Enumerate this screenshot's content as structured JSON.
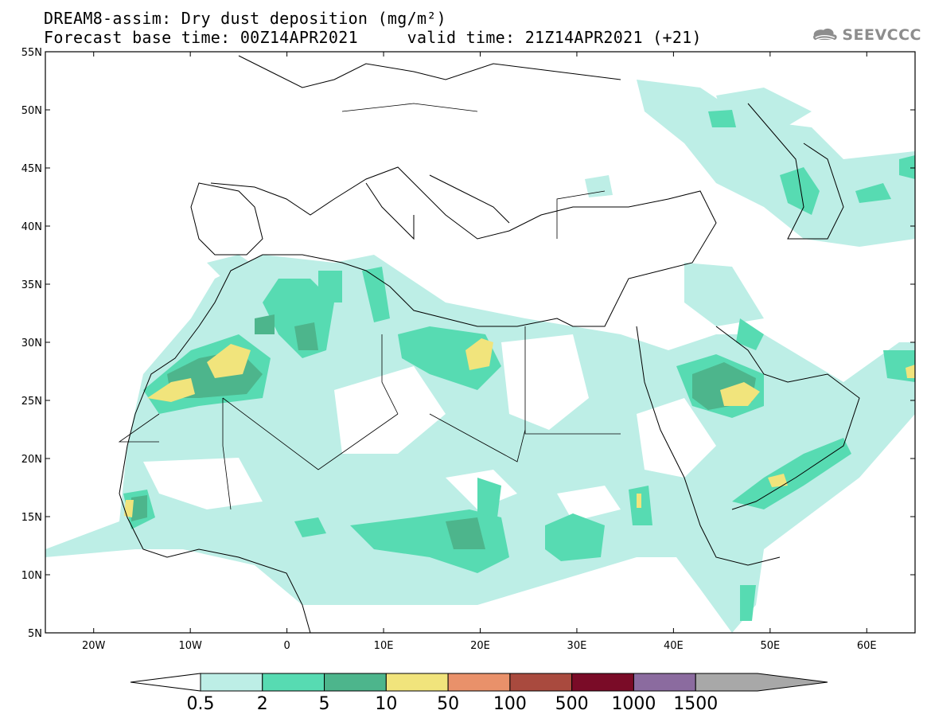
{
  "header": {
    "title_line1": "DREAM8-assim: Dry dust deposition (mg/m²)",
    "title_line2": "Forecast base time: 00Z14APR2021     valid time: 21Z14APR2021 (+21)",
    "logo_text": "SEEVCCC"
  },
  "map": {
    "lon_range": [
      -25,
      65
    ],
    "lat_range": [
      5,
      55
    ],
    "lat_ticks": [
      "55N",
      "50N",
      "45N",
      "40N",
      "35N",
      "30N",
      "25N",
      "20N",
      "15N",
      "10N",
      "5N"
    ],
    "lat_values": [
      55,
      50,
      45,
      40,
      35,
      30,
      25,
      20,
      15,
      10,
      5
    ],
    "lon_ticks": [
      "20W",
      "10W",
      "0",
      "10E",
      "20E",
      "30E",
      "40E",
      "50E",
      "60E"
    ],
    "lon_values": [
      -20,
      -10,
      0,
      10,
      20,
      30,
      40,
      50,
      60
    ]
  },
  "colorbar": {
    "labels": [
      "0.5",
      "2",
      "5",
      "10",
      "50",
      "100",
      "500",
      "1000",
      "1500"
    ],
    "colors": [
      "#bdeee6",
      "#57dbb2",
      "#4db58c",
      "#f1e47c",
      "#e9916a",
      "#a94a3e",
      "#7a0b27",
      "#8b6b9f",
      "#a8a8a8"
    ]
  }
}
